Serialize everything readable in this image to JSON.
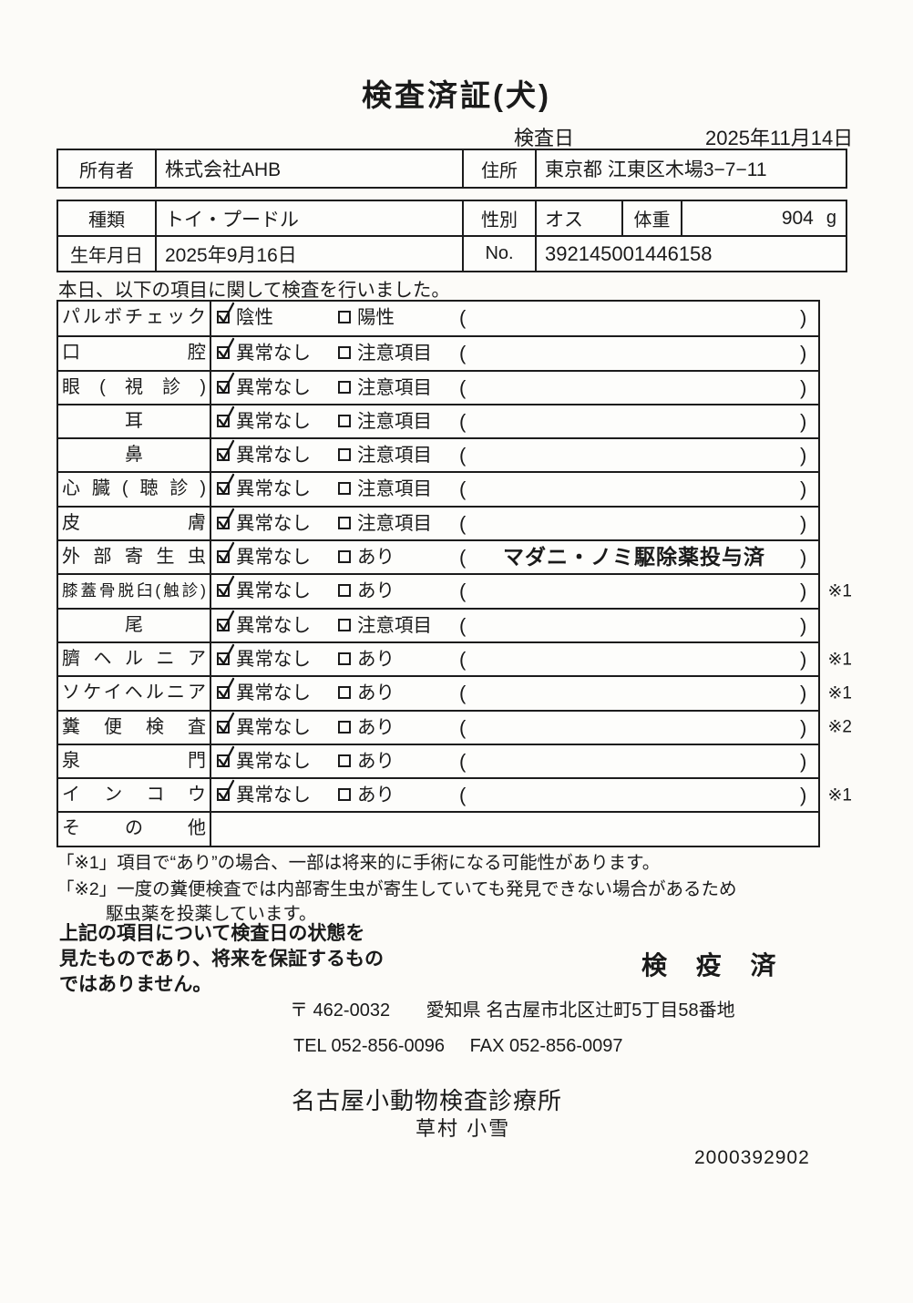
{
  "title": "検査済証(犬)",
  "inspection_date": {
    "label": "検査日",
    "value": "2025年11月14日"
  },
  "owner_table": {
    "owner_label": "所有者",
    "owner": "株式会社AHB",
    "address_label": "住所",
    "address": "東京都 江東区木場3−7−11"
  },
  "pet_table": {
    "type_label": "種類",
    "type": "トイ・プードル",
    "sex_label": "性別",
    "sex": "オス",
    "weight_label": "体重",
    "weight": "904",
    "weight_unit": "g",
    "birth_label": "生年月日",
    "birth": "2025年9月16日",
    "no_label": "No.",
    "no": "392145001446158"
  },
  "intro": "本日、以下の項目に関して検査を行いました。",
  "exam_table": {
    "rows": [
      {
        "label": "パルボチェック",
        "opt1": "陰性",
        "opt1_checked": true,
        "opt2": "陽性",
        "opt2_checked": false,
        "note": "",
        "remark": ""
      },
      {
        "label": "口腔",
        "opt1": "異常なし",
        "opt1_checked": true,
        "opt2": "注意項目",
        "opt2_checked": false,
        "note": "",
        "remark": ""
      },
      {
        "label": "眼(視診)",
        "opt1": "異常なし",
        "opt1_checked": true,
        "opt2": "注意項目",
        "opt2_checked": false,
        "note": "",
        "remark": ""
      },
      {
        "label": "耳",
        "center": true,
        "opt1": "異常なし",
        "opt1_checked": true,
        "opt2": "注意項目",
        "opt2_checked": false,
        "note": "",
        "remark": ""
      },
      {
        "label": "鼻",
        "center": true,
        "opt1": "異常なし",
        "opt1_checked": true,
        "opt2": "注意項目",
        "opt2_checked": false,
        "note": "",
        "remark": ""
      },
      {
        "label": "心臓(聴診)",
        "opt1": "異常なし",
        "opt1_checked": true,
        "opt2": "注意項目",
        "opt2_checked": false,
        "note": "",
        "remark": ""
      },
      {
        "label": "皮膚",
        "opt1": "異常なし",
        "opt1_checked": true,
        "opt2": "注意項目",
        "opt2_checked": false,
        "note": "",
        "remark": ""
      },
      {
        "label": "外部寄生虫",
        "opt1": "異常なし",
        "opt1_checked": true,
        "opt2": "あり",
        "opt2_checked": false,
        "note": "マダニ・ノミ駆除薬投与済",
        "remark": ""
      },
      {
        "label": "膝蓋骨脱臼(触診)",
        "small": true,
        "opt1": "異常なし",
        "opt1_checked": true,
        "opt2": "あり",
        "opt2_checked": false,
        "note": "",
        "remark": "※1"
      },
      {
        "label": "尾",
        "center": true,
        "opt1": "異常なし",
        "opt1_checked": true,
        "opt2": "注意項目",
        "opt2_checked": false,
        "note": "",
        "remark": ""
      },
      {
        "label": "臍ヘルニア",
        "opt1": "異常なし",
        "opt1_checked": true,
        "opt2": "あり",
        "opt2_checked": false,
        "note": "",
        "remark": "※1"
      },
      {
        "label": "ソケイヘルニア",
        "opt1": "異常なし",
        "opt1_checked": true,
        "opt2": "あり",
        "opt2_checked": false,
        "note": "",
        "remark": "※1"
      },
      {
        "label": "糞便検査",
        "opt1": "異常なし",
        "opt1_checked": true,
        "opt2": "あり",
        "opt2_checked": false,
        "note": "",
        "remark": "※2"
      },
      {
        "label": "泉門",
        "opt1": "異常なし",
        "opt1_checked": true,
        "opt2": "あり",
        "opt2_checked": false,
        "note": "",
        "remark": ""
      },
      {
        "label": "インコウ",
        "opt1": "異常なし",
        "opt1_checked": true,
        "opt2": "あり",
        "opt2_checked": false,
        "note": "",
        "remark": "※1"
      },
      {
        "label": "その他",
        "no_options": true,
        "note": "",
        "remark": ""
      }
    ]
  },
  "footnotes": [
    "「※1」項目で“あり”の場合、一部は将来的に手術になる可能性があります。",
    "「※2」一度の糞便検査では内部寄生虫が寄生していても発見できない場合があるため",
    "駆虫薬を投薬しています。"
  ],
  "disclaimer": [
    "上記の項目について検査日の状態を",
    "見たものであり、将来を保証するもの",
    "ではありません。"
  ],
  "stamp": "検 疫 済",
  "clinic": {
    "postal": "〒 462-0032",
    "address": "愛知県 名古屋市北区辻町5丁目58番地",
    "tel": "TEL 052-856-0096",
    "fax": "FAX 052-856-0097",
    "name": "名古屋小動物検査診療所",
    "examiner": "草村 小雪"
  },
  "serial": "2000392902"
}
